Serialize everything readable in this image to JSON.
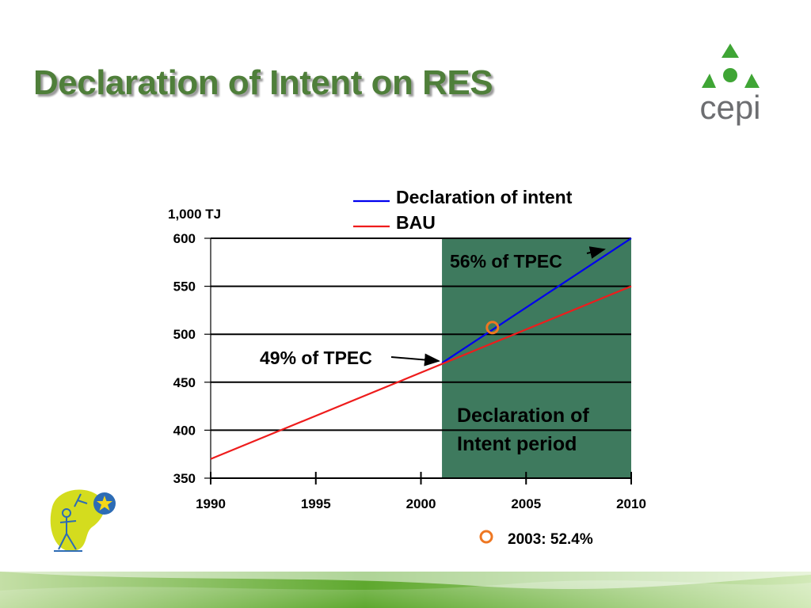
{
  "slide": {
    "title": "Declaration of Intent on RES"
  },
  "logo": {
    "text": "cepi",
    "colors": {
      "green": "#3fa535",
      "gray": "#6d6e71"
    }
  },
  "chart_data": {
    "type": "line",
    "title": "",
    "xlabel": "",
    "ylabel": "1,000 TJ",
    "xlim": [
      1990,
      2010
    ],
    "ylim": [
      350,
      600
    ],
    "x_ticks": [
      "1990",
      "1995",
      "2000",
      "2005",
      "2010"
    ],
    "y_ticks": [
      "350",
      "400",
      "450",
      "500",
      "550",
      "600"
    ],
    "grid": true,
    "legend_position": "top",
    "series": [
      {
        "name": "Declaration of intent",
        "color": "#0000ee",
        "x": [
          2001,
          2010
        ],
        "y": [
          470,
          600
        ]
      },
      {
        "name": "BAU",
        "color": "#ee1c1c",
        "x": [
          1990,
          2010
        ],
        "y": [
          370,
          550
        ]
      }
    ],
    "shaded_region": {
      "x": [
        2001,
        2010
      ],
      "color": "#3e7a5e",
      "label_lines": [
        "Declaration of",
        "Intent period"
      ]
    },
    "point": {
      "x": 2003.4,
      "y": 507,
      "color": "#ee7722",
      "legend_label": "2003: 52.4%"
    },
    "annotations": [
      {
        "text": "49% of TPEC"
      },
      {
        "text": "56% of TPEC"
      }
    ]
  },
  "colors": {
    "title": "#4f7f3a",
    "region": "#3e7a5e",
    "point": "#ee7722"
  }
}
